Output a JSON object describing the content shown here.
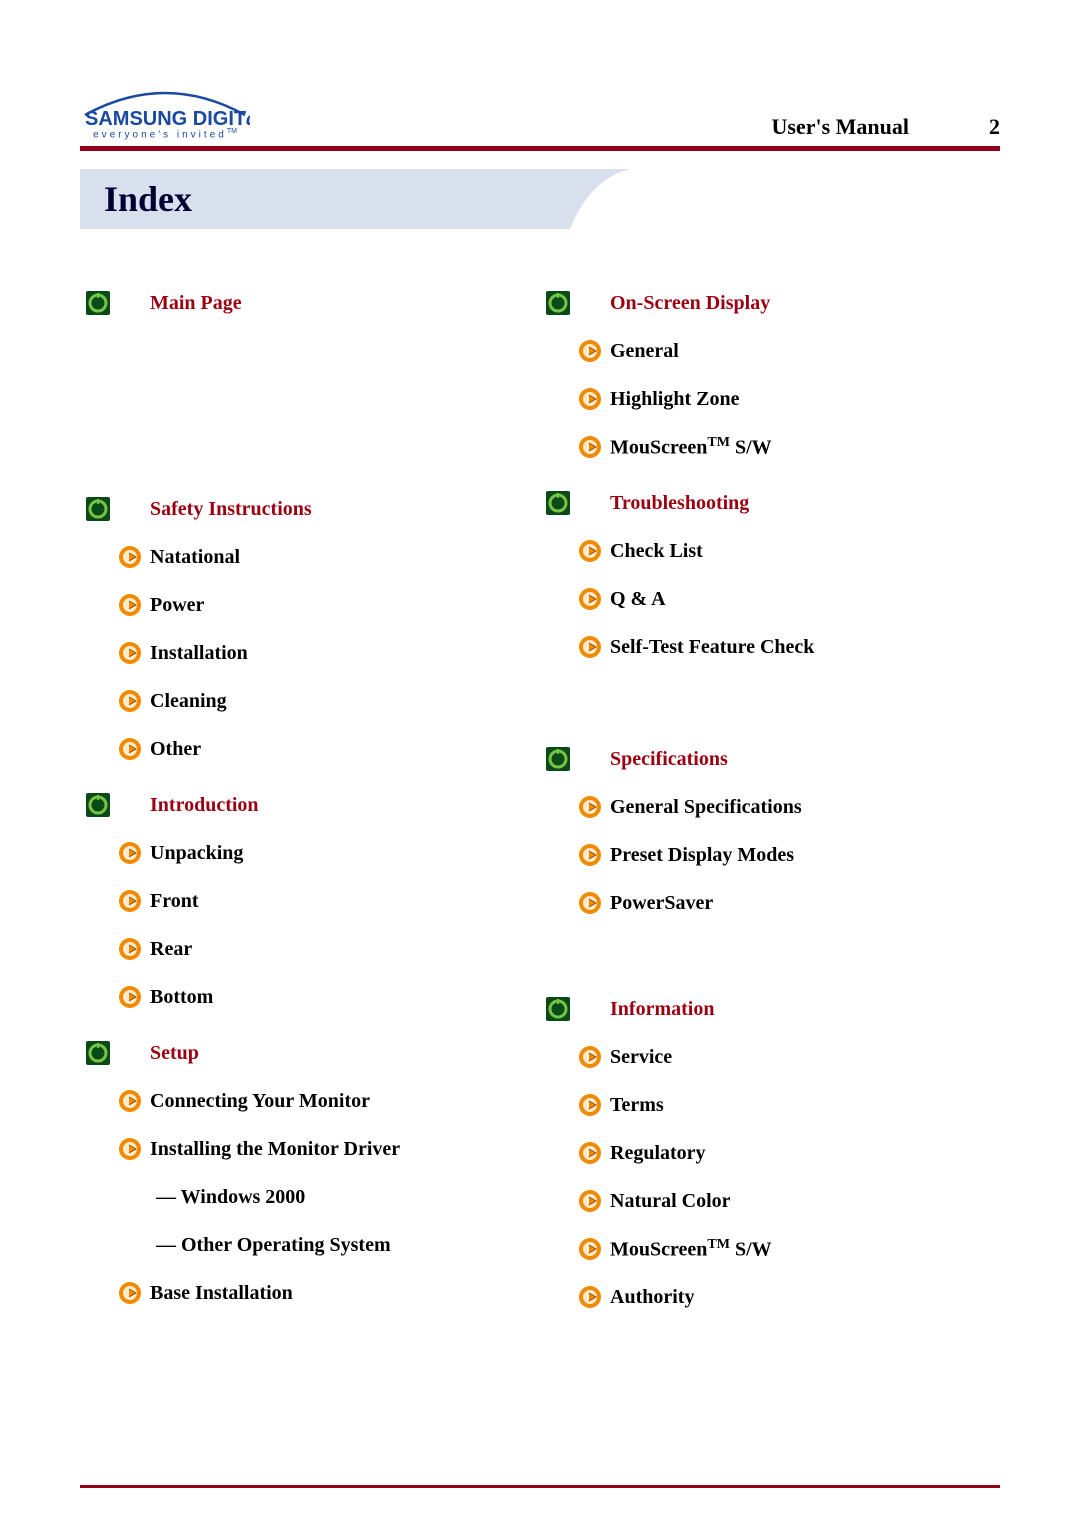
{
  "header": {
    "logo_main": "SAMSUNG DIGIT",
    "logo_suffix": "all",
    "tagline": "everyone's invited",
    "tagline_tm": "TM",
    "right_label": "User's Manual",
    "page_number": "2"
  },
  "title": "Index",
  "colors": {
    "accent_dark_red": "#940018",
    "section_text": "#9b0010",
    "title_bg": "#d8e0ee",
    "logo_blue": "#1a4aa0",
    "icon_green_dark": "#0a4a18",
    "icon_green_light": "#5aa522",
    "icon_orange_outer": "#f28a00",
    "icon_orange_inner": "#ffc972"
  },
  "left_col": [
    {
      "label": "Main Page",
      "spacer_after": true,
      "subs": []
    },
    {
      "label": "Safety Instructions",
      "subs": [
        {
          "label": "Natational"
        },
        {
          "label": "Power"
        },
        {
          "label": "Installation"
        },
        {
          "label": "Cleaning"
        },
        {
          "label": "Other"
        }
      ]
    },
    {
      "label": "Introduction",
      "subs": [
        {
          "label": "Unpacking"
        },
        {
          "label": "Front"
        },
        {
          "label": "Rear"
        },
        {
          "label": "Bottom"
        }
      ]
    },
    {
      "label": "Setup",
      "subs": [
        {
          "label": " Connecting Your Monitor"
        },
        {
          "label": "Installing the Monitor Driver"
        },
        {
          "label": "— Windows 2000",
          "no_icon": true
        },
        {
          "label": "— Other Operating System",
          "no_icon": true
        },
        {
          "label": "Base Installation"
        }
      ]
    }
  ],
  "right_col": [
    {
      "label": "On-Screen Display",
      "subs": [
        {
          "label": "General"
        },
        {
          "label": "Highlight Zone"
        },
        {
          "label_html": "MouScreen<span class=\"trademark\">TM</span> S/W"
        }
      ]
    },
    {
      "label": "Troubleshooting",
      "subs": [
        {
          "label": "Check List"
        },
        {
          "label": "Q & A"
        },
        {
          "label": "Self-Test Feature Check"
        }
      ],
      "trailing_gap": 56
    },
    {
      "label": "Specifications",
      "subs": [
        {
          "label": "General Specifications"
        },
        {
          "label": "Preset Display Modes"
        },
        {
          "label": "PowerSaver"
        }
      ],
      "trailing_gap": 50
    },
    {
      "label": "Information",
      "subs": [
        {
          "label": "Service"
        },
        {
          "label": "Terms"
        },
        {
          "label": "Regulatory"
        },
        {
          "label": "Natural Color"
        },
        {
          "label_html": "MouScreen<span class=\"trademark\">TM</span> S/W"
        },
        {
          "label": "Authority"
        }
      ]
    }
  ]
}
